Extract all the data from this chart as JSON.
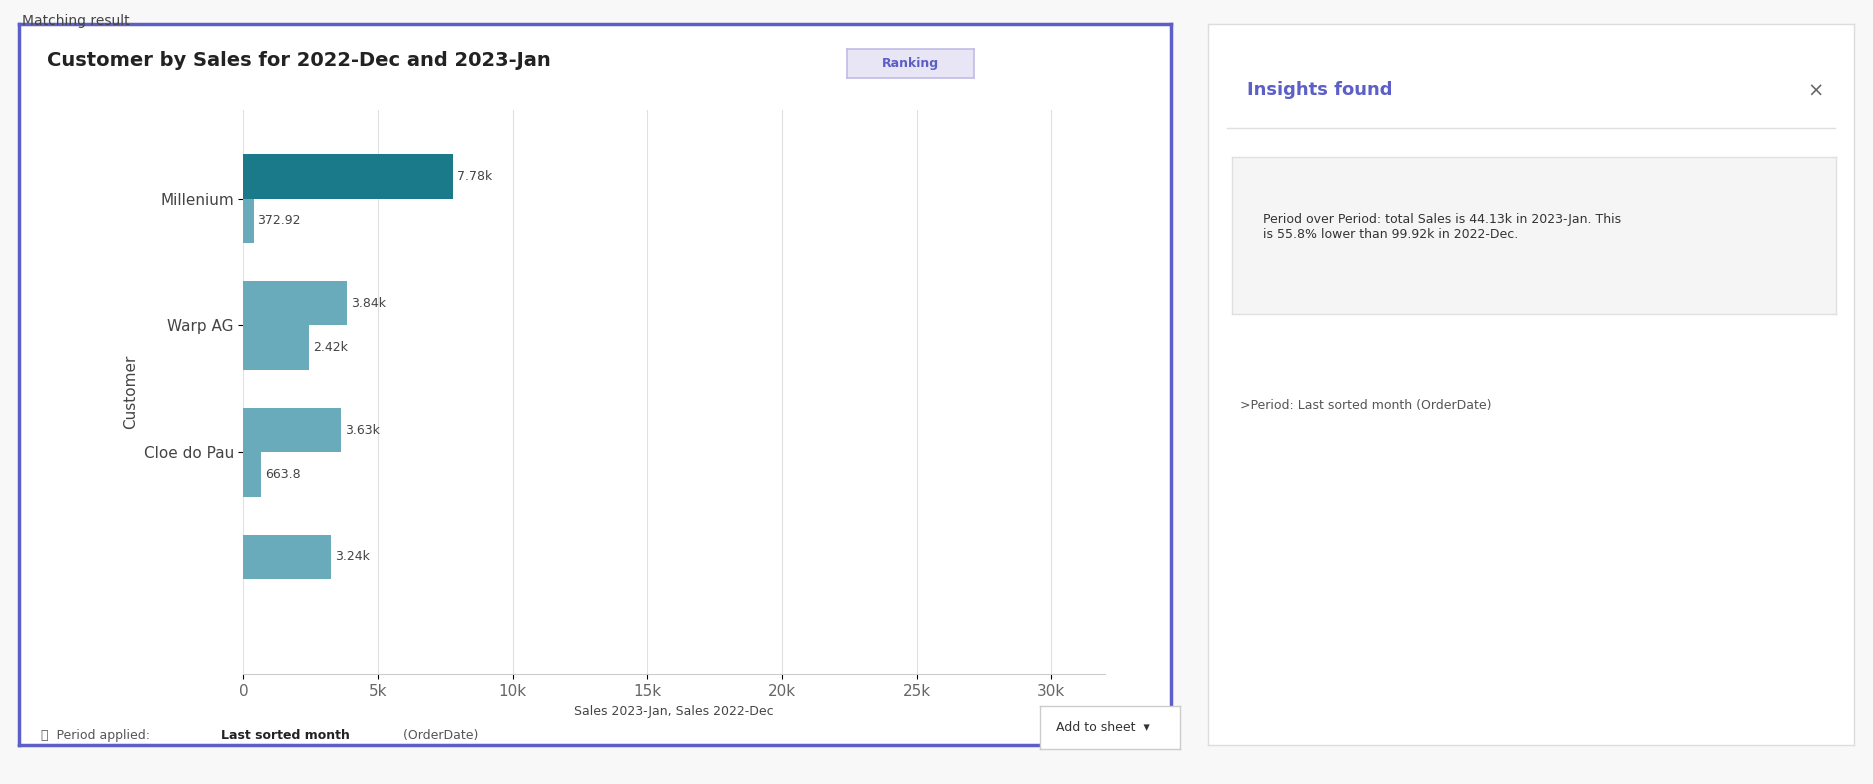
{
  "title": "Customer by Sales for 2022-Dec and 2023-Jan",
  "ranking_label": "Ranking",
  "ylabel": "Customer",
  "xlabel": "Sales 2023-Jan, Sales 2022-Dec",
  "customers": [
    "Millenium",
    "Warp AG",
    "Cloe do Pau",
    ""
  ],
  "dec2022_values": [
    7780,
    3840,
    3630,
    3240
  ],
  "jan2023_values": [
    372.92,
    2420,
    663.8,
    0
  ],
  "dec2022_color": "#1a7a8a",
  "jan2023_color": "#6aabbb",
  "xlim": [
    0,
    32000
  ],
  "xticks": [
    0,
    5000,
    10000,
    15000,
    20000,
    25000,
    30000
  ],
  "xticklabels": [
    "0",
    "5k",
    "10k",
    "15k",
    "20k",
    "25k",
    "30k"
  ],
  "background_color": "#ffffff",
  "outer_bg": "#f8f8f8",
  "border_color": "#5b5fc7",
  "insights_title": "Insights found",
  "insights_text": "Period over Period: total Sales is 44.13k in 2023-Jan. This\nis 55.8% lower than 99.92k in 2022-Dec.",
  "insights_subtext": ">Period: Last sorted month (OrderDate)",
  "title_fontsize": 14,
  "axis_fontsize": 11,
  "annotation_fontsize": 9,
  "insights_panel_bg": "#ffffff",
  "insights_title_color": "#5b5fc7",
  "bar_height": 0.35,
  "dec_labels": [
    "7.78k",
    "3.84k",
    "3.63k",
    "3.24k"
  ],
  "jan_labels": [
    "372.92",
    "2.42k",
    "663.8",
    ""
  ]
}
